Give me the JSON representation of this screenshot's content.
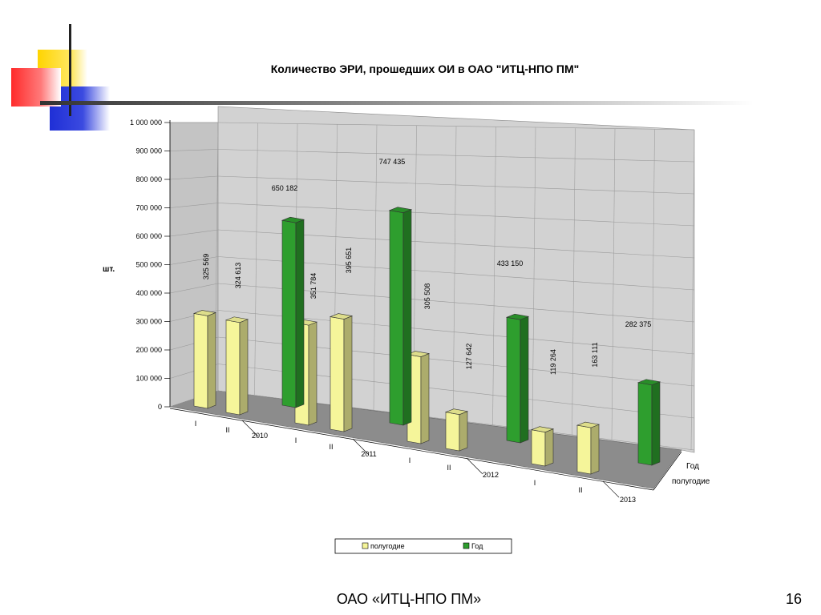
{
  "slide": {
    "title": "Количество ЭРИ, прошедших ОИ в ОАО \"ИТЦ-НПО ПМ\"",
    "footer": "ОАО «ИТЦ-НПО ПМ»",
    "page_number": "16"
  },
  "colors": {
    "half_year": "#f5f59a",
    "year": "#2e9e2e",
    "wall": "#cfcfcf",
    "floor": "#8c8c8c"
  },
  "chart_data": {
    "type": "bar",
    "title": "",
    "ylabel": "шт.",
    "ylim": [
      0,
      1000000
    ],
    "yticks": [
      "0",
      "100 000",
      "200 000",
      "300 000",
      "400 000",
      "500 000",
      "600 000",
      "700 000",
      "800 000",
      "900 000",
      "1 000 000"
    ],
    "years": [
      "2010",
      "2011",
      "2012",
      "2013"
    ],
    "period_labels": [
      "I",
      "II"
    ],
    "depth_axis_labels": [
      "Год",
      "полугодие"
    ],
    "series": [
      {
        "name": "полугодие",
        "color": "#f5f59a",
        "values": [
          325569,
          324613,
          351784,
          395651,
          305508,
          127642,
          119264,
          163111
        ]
      },
      {
        "name": "Год",
        "color": "#2e9e2e",
        "values": [
          650182,
          747435,
          433150,
          282375
        ]
      }
    ],
    "half_value_labels": [
      "325 569",
      "324 613",
      "351 784",
      "395 651",
      "305 508",
      "127 642",
      "119 264",
      "163 111"
    ],
    "year_value_labels": [
      "650 182",
      "747 435",
      "433 150",
      "282 375"
    ],
    "legend": [
      "полугодие",
      "Год"
    ],
    "legend_position": "bottom",
    "grid": true
  }
}
